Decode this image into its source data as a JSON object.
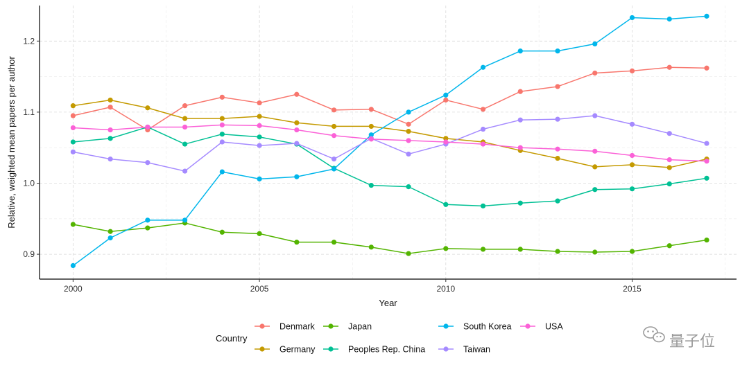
{
  "chart_data": {
    "type": "line",
    "title": "",
    "xlabel": "Year",
    "ylabel": "Relative, weighted mean papers per author",
    "xlim": [
      1999.1,
      2017.8
    ],
    "ylim": [
      0.865,
      1.25
    ],
    "xticks": [
      2000,
      2005,
      2010,
      2015
    ],
    "yticks": [
      0.9,
      1.0,
      1.1,
      1.2
    ],
    "xtick_labels": [
      "2000",
      "2005",
      "2010",
      "2015"
    ],
    "ytick_labels": [
      "0.9",
      "1.0",
      "1.1",
      "1.2"
    ],
    "grid": true,
    "legend_title": "Country",
    "legend_position": "bottom",
    "x": [
      2000,
      2001,
      2002,
      2003,
      2004,
      2005,
      2006,
      2007,
      2008,
      2009,
      2010,
      2011,
      2012,
      2013,
      2014,
      2015,
      2016,
      2017
    ],
    "series": [
      {
        "name": "Denmark",
        "color": "#F8766D",
        "values": [
          1.095,
          1.107,
          1.075,
          1.109,
          1.121,
          1.113,
          1.125,
          1.103,
          1.104,
          1.083,
          1.117,
          1.104,
          1.129,
          1.136,
          1.155,
          1.158,
          1.163,
          1.162
        ]
      },
      {
        "name": "Germany",
        "color": "#C49A00",
        "values": [
          1.109,
          1.117,
          1.106,
          1.091,
          1.091,
          1.094,
          1.085,
          1.08,
          1.08,
          1.073,
          1.063,
          1.058,
          1.046,
          1.035,
          1.023,
          1.026,
          1.022,
          1.034
        ]
      },
      {
        "name": "Japan",
        "color": "#53B400",
        "values": [
          0.942,
          0.932,
          0.937,
          0.944,
          0.931,
          0.929,
          0.917,
          0.917,
          0.91,
          0.901,
          0.908,
          0.907,
          0.907,
          0.904,
          0.903,
          0.904,
          0.912,
          0.92
        ]
      },
      {
        "name": "Peoples Rep. China",
        "color": "#00C094",
        "values": [
          1.058,
          1.063,
          1.079,
          1.055,
          1.069,
          1.065,
          1.055,
          1.021,
          0.997,
          0.995,
          0.97,
          0.968,
          0.972,
          0.975,
          0.991,
          0.992,
          0.999,
          1.007
        ]
      },
      {
        "name": "South Korea",
        "color": "#00B6EB",
        "values": [
          0.884,
          0.923,
          0.948,
          0.948,
          1.016,
          1.006,
          1.009,
          1.02,
          1.068,
          1.1,
          1.124,
          1.163,
          1.186,
          1.186,
          1.196,
          1.233,
          1.231,
          1.235
        ]
      },
      {
        "name": "Taiwan",
        "color": "#A58AFF",
        "values": [
          1.044,
          1.034,
          1.029,
          1.017,
          1.058,
          1.053,
          1.056,
          1.034,
          1.063,
          1.041,
          1.055,
          1.076,
          1.089,
          1.09,
          1.095,
          1.083,
          1.07,
          1.056
        ]
      },
      {
        "name": "USA",
        "color": "#FB61D7",
        "values": [
          1.078,
          1.075,
          1.079,
          1.079,
          1.082,
          1.081,
          1.075,
          1.067,
          1.062,
          1.06,
          1.058,
          1.055,
          1.05,
          1.048,
          1.045,
          1.039,
          1.033,
          1.031
        ]
      }
    ],
    "legend_order": [
      "Denmark",
      "Germany",
      "Japan",
      "Peoples Rep. China",
      "South Korea",
      "Taiwan",
      "USA"
    ]
  },
  "watermark": {
    "text": "量子位",
    "icon": "wechat-icon"
  }
}
